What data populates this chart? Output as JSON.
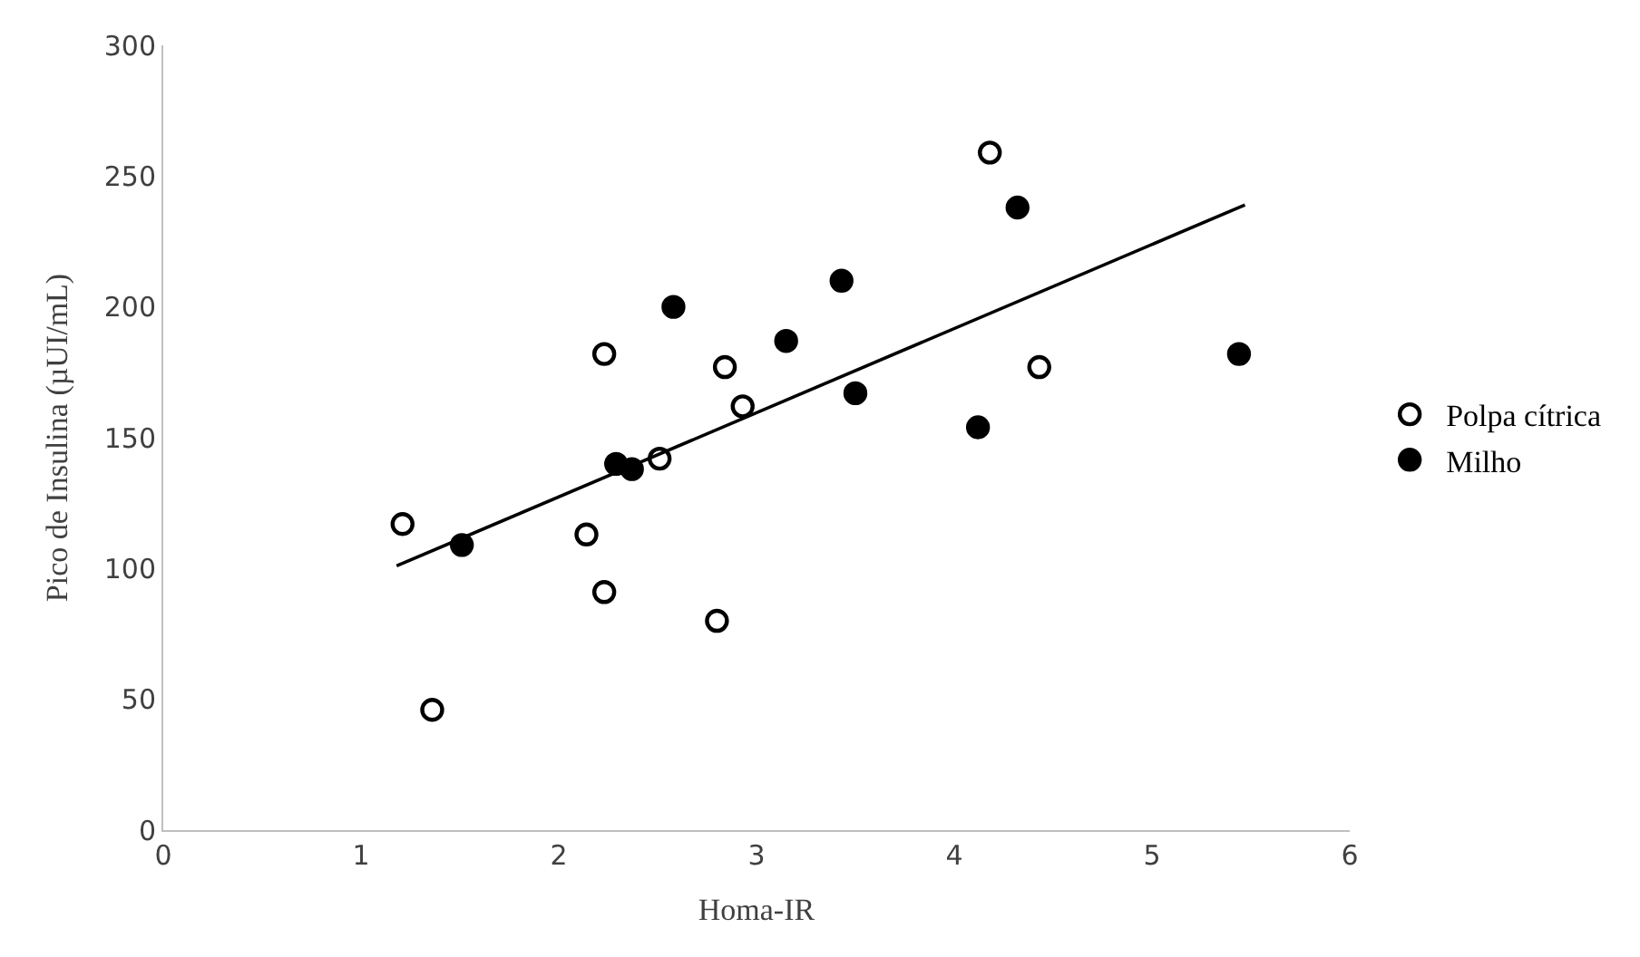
{
  "chart_data": {
    "type": "scatter",
    "xlabel": "Homa-IR",
    "ylabel": "Pico de Insulina (µUI/mL)",
    "xlim": [
      0,
      6
    ],
    "xticks": [
      0,
      1,
      2,
      3,
      4,
      5,
      6
    ],
    "ylim": [
      0,
      300
    ],
    "yticks": [
      0,
      50,
      100,
      150,
      200,
      250,
      300
    ],
    "legend": "right",
    "series": [
      {
        "name": "Polpa cítrica",
        "color": "#ffffff",
        "marker": "circle",
        "x": [
          1.21,
          1.36,
          2.14,
          2.23,
          2.23,
          2.51,
          2.8,
          2.84,
          2.93,
          4.18,
          4.43
        ],
        "values": [
          117,
          46,
          113,
          182,
          91,
          142,
          80,
          177,
          162,
          259,
          177
        ]
      },
      {
        "name": "Milho",
        "color": "#000000",
        "marker": "circle",
        "x": [
          1.51,
          2.29,
          2.37,
          2.58,
          3.15,
          3.43,
          3.5,
          4.12,
          4.32,
          5.44
        ],
        "values": [
          109,
          140,
          138,
          200,
          187,
          210,
          167,
          154,
          238,
          182
        ]
      },
      {
        "type": "line",
        "color": "#000000",
        "marker": "none",
        "line_style": "solid",
        "x": [
          1.18,
          5.47
        ],
        "values": [
          101,
          239
        ]
      }
    ]
  }
}
